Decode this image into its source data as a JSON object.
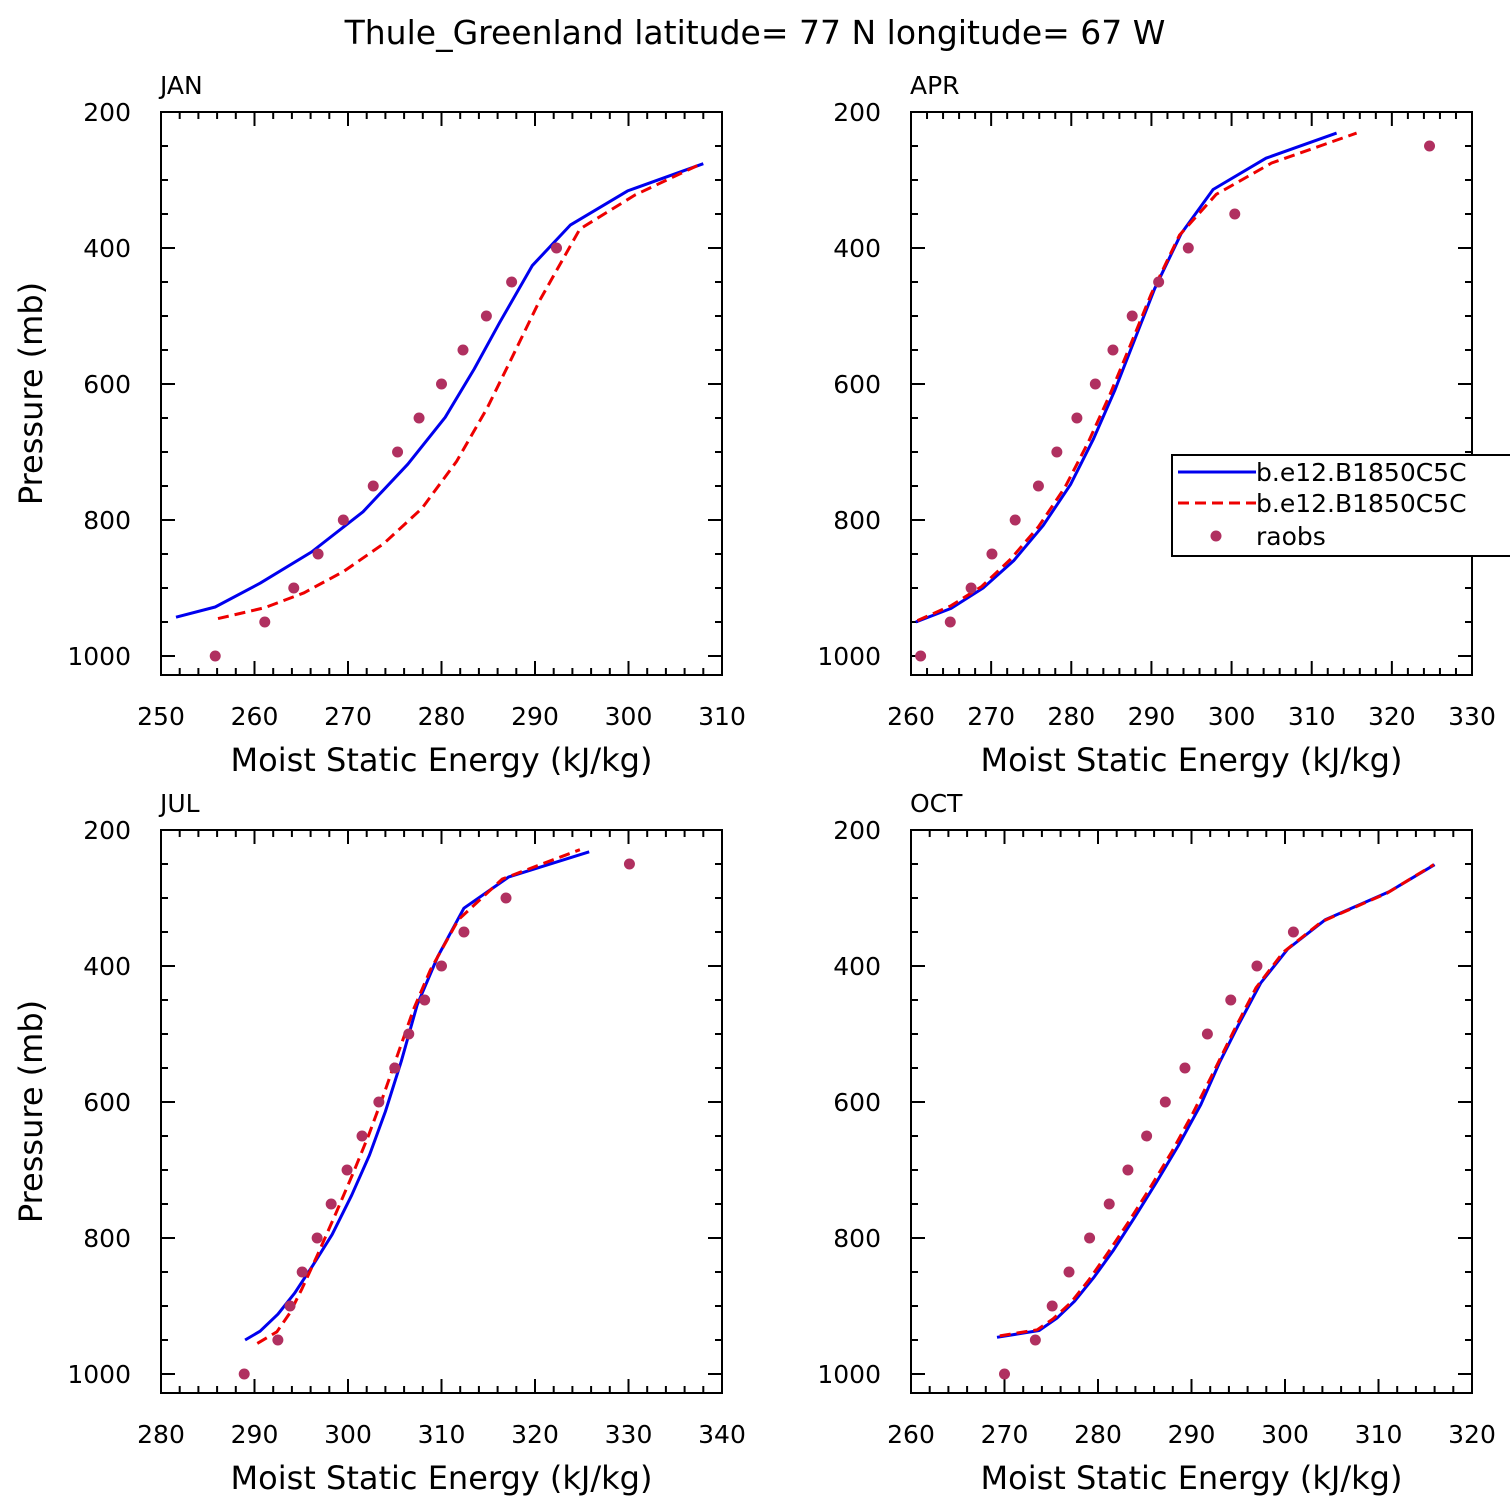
{
  "figure": {
    "title": "Thule_Greenland  latitude= 77 N longitude= 67 W"
  },
  "legend": {
    "entries": [
      {
        "label": "b.e12.B1850C5C",
        "style": "solid",
        "color": "#0000ee"
      },
      {
        "label": "b.e12.B1850C5C",
        "style": "dashed",
        "color": "#ee0000"
      },
      {
        "label": "raobs",
        "style": "marker",
        "color": "#b03060"
      }
    ],
    "placement": "right, partially clipped at figure edge"
  },
  "chart_data": [
    {
      "type": "line",
      "panel": "JAN",
      "xlabel": "Moist Static Energy (kJ/kg)",
      "ylabel": "Pressure (mb)",
      "xlim": [
        250,
        310
      ],
      "ylim": [
        1000,
        200
      ],
      "xticks": [
        250,
        260,
        270,
        280,
        290,
        300,
        310
      ],
      "yticks": [
        200,
        400,
        600,
        800,
        1000
      ],
      "series": [
        {
          "style": "solid",
          "color": "#0000ee",
          "points": [
            [
              251.6,
              943
            ],
            [
              255.8,
              928
            ],
            [
              260.6,
              893
            ],
            [
              266.1,
              847
            ],
            [
              271.6,
              788
            ],
            [
              276.4,
              718
            ],
            [
              280.4,
              649
            ],
            [
              283.5,
              578
            ],
            [
              286.2,
              510
            ],
            [
              289.7,
              426
            ],
            [
              293.8,
              366
            ],
            [
              299.9,
              316
            ],
            [
              308.0,
              276
            ]
          ]
        },
        {
          "style": "dashed",
          "color": "#ee0000",
          "points": [
            [
              256.1,
              945
            ],
            [
              261.1,
              929
            ],
            [
              265.3,
              907
            ],
            [
              269.6,
              875
            ],
            [
              273.8,
              835
            ],
            [
              277.9,
              783
            ],
            [
              281.6,
              714
            ],
            [
              284.9,
              635
            ],
            [
              287.4,
              565
            ],
            [
              290.5,
              477
            ],
            [
              294.8,
              372
            ],
            [
              300.7,
              322
            ],
            [
              307.8,
              276
            ]
          ]
        },
        {
          "style": "marker",
          "color": "#b03060",
          "points": [
            [
              255.8,
              1000
            ],
            [
              261.1,
              950
            ],
            [
              264.2,
              900
            ],
            [
              266.8,
              850
            ],
            [
              269.5,
              800
            ],
            [
              272.7,
              750
            ],
            [
              275.3,
              700
            ],
            [
              277.6,
              650
            ],
            [
              280.0,
              600
            ],
            [
              282.3,
              550
            ],
            [
              284.8,
              500
            ],
            [
              287.5,
              450
            ],
            [
              292.3,
              400
            ]
          ]
        }
      ]
    },
    {
      "type": "line",
      "panel": "APR",
      "xlabel": "Moist Static Energy (kJ/kg)",
      "ylabel": "",
      "xlim": [
        260,
        330
      ],
      "ylim": [
        1000,
        200
      ],
      "xticks": [
        260,
        270,
        280,
        290,
        300,
        310,
        320,
        330
      ],
      "yticks": [
        200,
        400,
        600,
        800,
        1000
      ],
      "series": [
        {
          "style": "solid",
          "color": "#0000ee",
          "points": [
            [
              260.6,
              950
            ],
            [
              265.0,
              930
            ],
            [
              269.0,
              900
            ],
            [
              272.8,
              860
            ],
            [
              276.5,
              808
            ],
            [
              279.9,
              748
            ],
            [
              282.8,
              680
            ],
            [
              285.4,
              610
            ],
            [
              287.8,
              538
            ],
            [
              290.4,
              460
            ],
            [
              293.7,
              379
            ],
            [
              297.7,
              314
            ],
            [
              304.3,
              268
            ],
            [
              313.1,
              231
            ]
          ]
        },
        {
          "style": "dashed",
          "color": "#ee0000",
          "points": [
            [
              260.8,
              948
            ],
            [
              265.0,
              926
            ],
            [
              268.8,
              898
            ],
            [
              272.4,
              858
            ],
            [
              275.9,
              810
            ],
            [
              279.2,
              752
            ],
            [
              282.1,
              686
            ],
            [
              284.8,
              616
            ],
            [
              287.3,
              545
            ],
            [
              290.0,
              467
            ],
            [
              293.5,
              381
            ],
            [
              298.1,
              321
            ],
            [
              305.0,
              275
            ],
            [
              315.6,
              231
            ]
          ]
        },
        {
          "style": "marker",
          "color": "#b03060",
          "points": [
            [
              261.2,
              1000
            ],
            [
              264.9,
              950
            ],
            [
              267.5,
              900
            ],
            [
              270.1,
              850
            ],
            [
              273.0,
              800
            ],
            [
              275.9,
              750
            ],
            [
              278.2,
              700
            ],
            [
              280.7,
              650
            ],
            [
              283.0,
              600
            ],
            [
              285.2,
              550
            ],
            [
              287.6,
              500
            ],
            [
              290.9,
              450
            ],
            [
              294.6,
              400
            ],
            [
              300.4,
              350
            ],
            [
              324.7,
              250
            ]
          ]
        }
      ]
    },
    {
      "type": "line",
      "panel": "JUL",
      "xlabel": "Moist Static Energy (kJ/kg)",
      "ylabel": "Pressure (mb)",
      "xlim": [
        280,
        340
      ],
      "ylim": [
        1000,
        200
      ],
      "xticks": [
        280,
        290,
        300,
        310,
        320,
        330,
        340
      ],
      "yticks": [
        200,
        400,
        600,
        800,
        1000
      ],
      "series": [
        {
          "style": "solid",
          "color": "#0000ee",
          "points": [
            [
              289.0,
              950
            ],
            [
              290.6,
              937
            ],
            [
              292.5,
              912
            ],
            [
              294.3,
              881
            ],
            [
              296.2,
              841
            ],
            [
              298.3,
              795
            ],
            [
              300.4,
              737
            ],
            [
              302.3,
              678
            ],
            [
              304.0,
              614
            ],
            [
              305.7,
              540
            ],
            [
              307.4,
              457
            ],
            [
              309.6,
              386
            ],
            [
              312.4,
              315
            ],
            [
              317.2,
              269
            ],
            [
              325.8,
              232
            ]
          ]
        },
        {
          "style": "dashed",
          "color": "#ee0000",
          "points": [
            [
              290.3,
              955
            ],
            [
              292.4,
              938
            ],
            [
              293.8,
              910
            ],
            [
              295.1,
              874
            ],
            [
              296.8,
              823
            ],
            [
              298.7,
              764
            ],
            [
              300.6,
              703
            ],
            [
              302.2,
              649
            ],
            [
              303.8,
              590
            ],
            [
              305.5,
              523
            ],
            [
              307.0,
              464
            ],
            [
              308.8,
              406
            ],
            [
              311.8,
              332
            ],
            [
              316.5,
              272
            ],
            [
              324.8,
              229
            ]
          ]
        },
        {
          "style": "marker",
          "color": "#b03060",
          "points": [
            [
              288.9,
              1000
            ],
            [
              292.5,
              950
            ],
            [
              293.8,
              900
            ],
            [
              295.1,
              850
            ],
            [
              296.7,
              800
            ],
            [
              298.2,
              750
            ],
            [
              299.9,
              700
            ],
            [
              301.5,
              650
            ],
            [
              303.3,
              600
            ],
            [
              305.0,
              550
            ],
            [
              306.5,
              500
            ],
            [
              308.2,
              450
            ],
            [
              310.0,
              400
            ],
            [
              312.4,
              350
            ],
            [
              316.9,
              300
            ],
            [
              330.1,
              250
            ]
          ]
        }
      ]
    },
    {
      "type": "line",
      "panel": "OCT",
      "xlabel": "Moist Static Energy (kJ/kg)",
      "ylabel": "",
      "xlim": [
        260,
        320
      ],
      "ylim": [
        1000,
        200
      ],
      "xticks": [
        260,
        270,
        280,
        290,
        300,
        310,
        320
      ],
      "yticks": [
        200,
        400,
        600,
        800,
        1000
      ],
      "series": [
        {
          "style": "solid",
          "color": "#0000ee",
          "points": [
            [
              269.2,
              946
            ],
            [
              273.7,
              936
            ],
            [
              275.6,
              918
            ],
            [
              277.5,
              893
            ],
            [
              279.6,
              857
            ],
            [
              281.6,
              819
            ],
            [
              283.9,
              770
            ],
            [
              286.2,
              719
            ],
            [
              288.6,
              664
            ],
            [
              291.0,
              604
            ],
            [
              293.0,
              542
            ],
            [
              295.0,
              487
            ],
            [
              297.4,
              425
            ],
            [
              300.3,
              375
            ],
            [
              304.3,
              332
            ],
            [
              311.1,
              291
            ],
            [
              316.0,
              251
            ]
          ]
        },
        {
          "style": "dashed",
          "color": "#ee0000",
          "points": [
            [
              269.5,
              944
            ],
            [
              273.5,
              935
            ],
            [
              275.2,
              919
            ],
            [
              277.1,
              895
            ],
            [
              279.0,
              862
            ],
            [
              280.9,
              825
            ],
            [
              283.2,
              778
            ],
            [
              285.5,
              728
            ],
            [
              287.9,
              673
            ],
            [
              290.2,
              615
            ],
            [
              292.4,
              555
            ],
            [
              294.5,
              496
            ],
            [
              296.9,
              432
            ],
            [
              299.8,
              380
            ],
            [
              303.9,
              335
            ],
            [
              310.9,
              293
            ],
            [
              315.9,
              251
            ]
          ]
        },
        {
          "style": "marker",
          "color": "#b03060",
          "points": [
            [
              270.0,
              1000
            ],
            [
              273.3,
              950
            ],
            [
              275.1,
              900
            ],
            [
              276.9,
              850
            ],
            [
              279.1,
              800
            ],
            [
              281.2,
              750
            ],
            [
              283.2,
              700
            ],
            [
              285.2,
              650
            ],
            [
              287.2,
              600
            ],
            [
              289.3,
              550
            ],
            [
              291.7,
              500
            ],
            [
              294.2,
              450
            ],
            [
              297.0,
              400
            ],
            [
              300.9,
              350
            ]
          ]
        }
      ]
    }
  ]
}
